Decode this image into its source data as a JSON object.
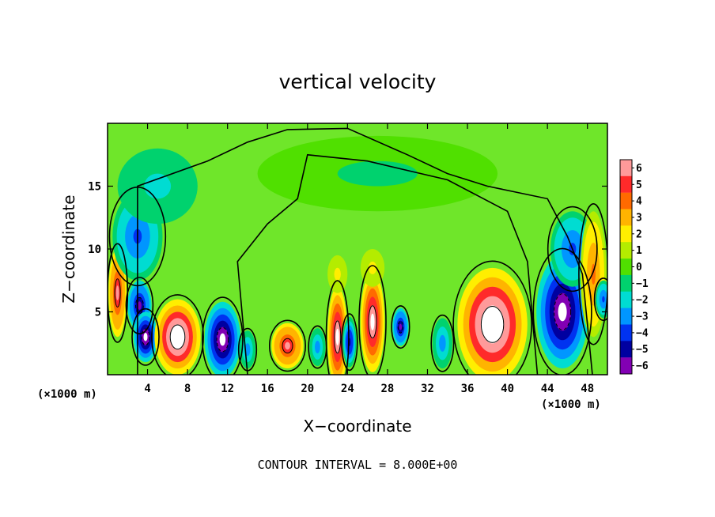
{
  "chart_data": {
    "type": "heatmap",
    "title": "vertical velocity",
    "xlabel": "X−coordinate",
    "ylabel": "Z−coordinate",
    "x_unit_left": "(×1000 m)",
    "x_unit_right": "(×1000 m)",
    "footer": "CONTOUR INTERVAL = 8.000E+00",
    "xlim": [
      0,
      50
    ],
    "ylim": [
      0,
      20
    ],
    "x_ticks": [
      4,
      8,
      12,
      16,
      20,
      24,
      28,
      32,
      36,
      40,
      44,
      48
    ],
    "y_ticks": [
      5,
      10,
      15
    ],
    "colorbar": {
      "ticks": [
        "6",
        "5",
        "4",
        "3",
        "2",
        "1",
        "0",
        "−1",
        "−2",
        "−3",
        "−4",
        "−5",
        "−6"
      ],
      "levels": [
        6,
        5,
        4,
        3,
        2,
        1,
        0,
        -1,
        -2,
        -3,
        -4,
        -5,
        -6
      ],
      "colors": [
        "#ff9a9a",
        "#ff2a2a",
        "#ff6a00",
        "#ffb400",
        "#ffee00",
        "#b4ec00",
        "#50e000",
        "#00d26e",
        "#00dcd2",
        "#0096ff",
        "#0032f0",
        "#0000a0",
        "#8200b4"
      ],
      "background": "#6fe62a"
    },
    "contour_interval": 8.0,
    "features": [
      {
        "x": 1,
        "z": 6.5,
        "value": 6,
        "rx": 0.9,
        "rz": 3.5
      },
      {
        "x": 3,
        "z": 11,
        "value": -4,
        "rx": 2.5,
        "rz": 3.5
      },
      {
        "x": 3.2,
        "z": 5.5,
        "value": -6,
        "rx": 1.2,
        "rz": 2
      },
      {
        "x": 3.8,
        "z": 3,
        "value": -7,
        "rx": 1.2,
        "rz": 2
      },
      {
        "x": 7,
        "z": 3,
        "value": 8,
        "rx": 2.3,
        "rz": 3
      },
      {
        "x": 11.5,
        "z": 2.8,
        "value": -7,
        "rx": 1.8,
        "rz": 3
      },
      {
        "x": 14,
        "z": 2,
        "value": -3,
        "rx": 0.8,
        "rz": 1.5
      },
      {
        "x": 18,
        "z": 2.3,
        "value": 6,
        "rx": 1.6,
        "rz": 1.8
      },
      {
        "x": 21,
        "z": 2.2,
        "value": -3,
        "rx": 0.8,
        "rz": 1.5
      },
      {
        "x": 23,
        "z": 3,
        "value": 7,
        "rx": 1,
        "rz": 4
      },
      {
        "x": 24.2,
        "z": 2.6,
        "value": -5,
        "rx": 0.7,
        "rz": 2
      },
      {
        "x": 26.5,
        "z": 4.2,
        "value": 7,
        "rx": 1.2,
        "rz": 4
      },
      {
        "x": 29.3,
        "z": 3.8,
        "value": -6,
        "rx": 0.8,
        "rz": 1.5
      },
      {
        "x": 33.5,
        "z": 2.5,
        "value": -3,
        "rx": 1,
        "rz": 2
      },
      {
        "x": 38.5,
        "z": 4,
        "value": 8,
        "rx": 3.5,
        "rz": 4.5
      },
      {
        "x": 45.5,
        "z": 5,
        "value": -7,
        "rx": 2.6,
        "rz": 4.5
      },
      {
        "x": 46.5,
        "z": 10,
        "value": -4,
        "rx": 2.2,
        "rz": 3
      },
      {
        "x": 48.6,
        "z": 8,
        "value": 4,
        "rx": 1.3,
        "rz": 5
      },
      {
        "x": 49.6,
        "z": 6,
        "value": -4,
        "rx": 0.8,
        "rz": 1.5
      },
      {
        "x": 23,
        "z": 8,
        "value": 2,
        "rx": 1,
        "rz": 1.5
      },
      {
        "x": 26.5,
        "z": 8.5,
        "value": 2,
        "rx": 1.2,
        "rz": 1.5
      },
      {
        "x": 5,
        "z": 15,
        "value": -2,
        "rx": 4,
        "rz": 3
      },
      {
        "x": 27,
        "z": 16,
        "value": -0.6,
        "rx": 12,
        "rz": 3
      }
    ]
  }
}
